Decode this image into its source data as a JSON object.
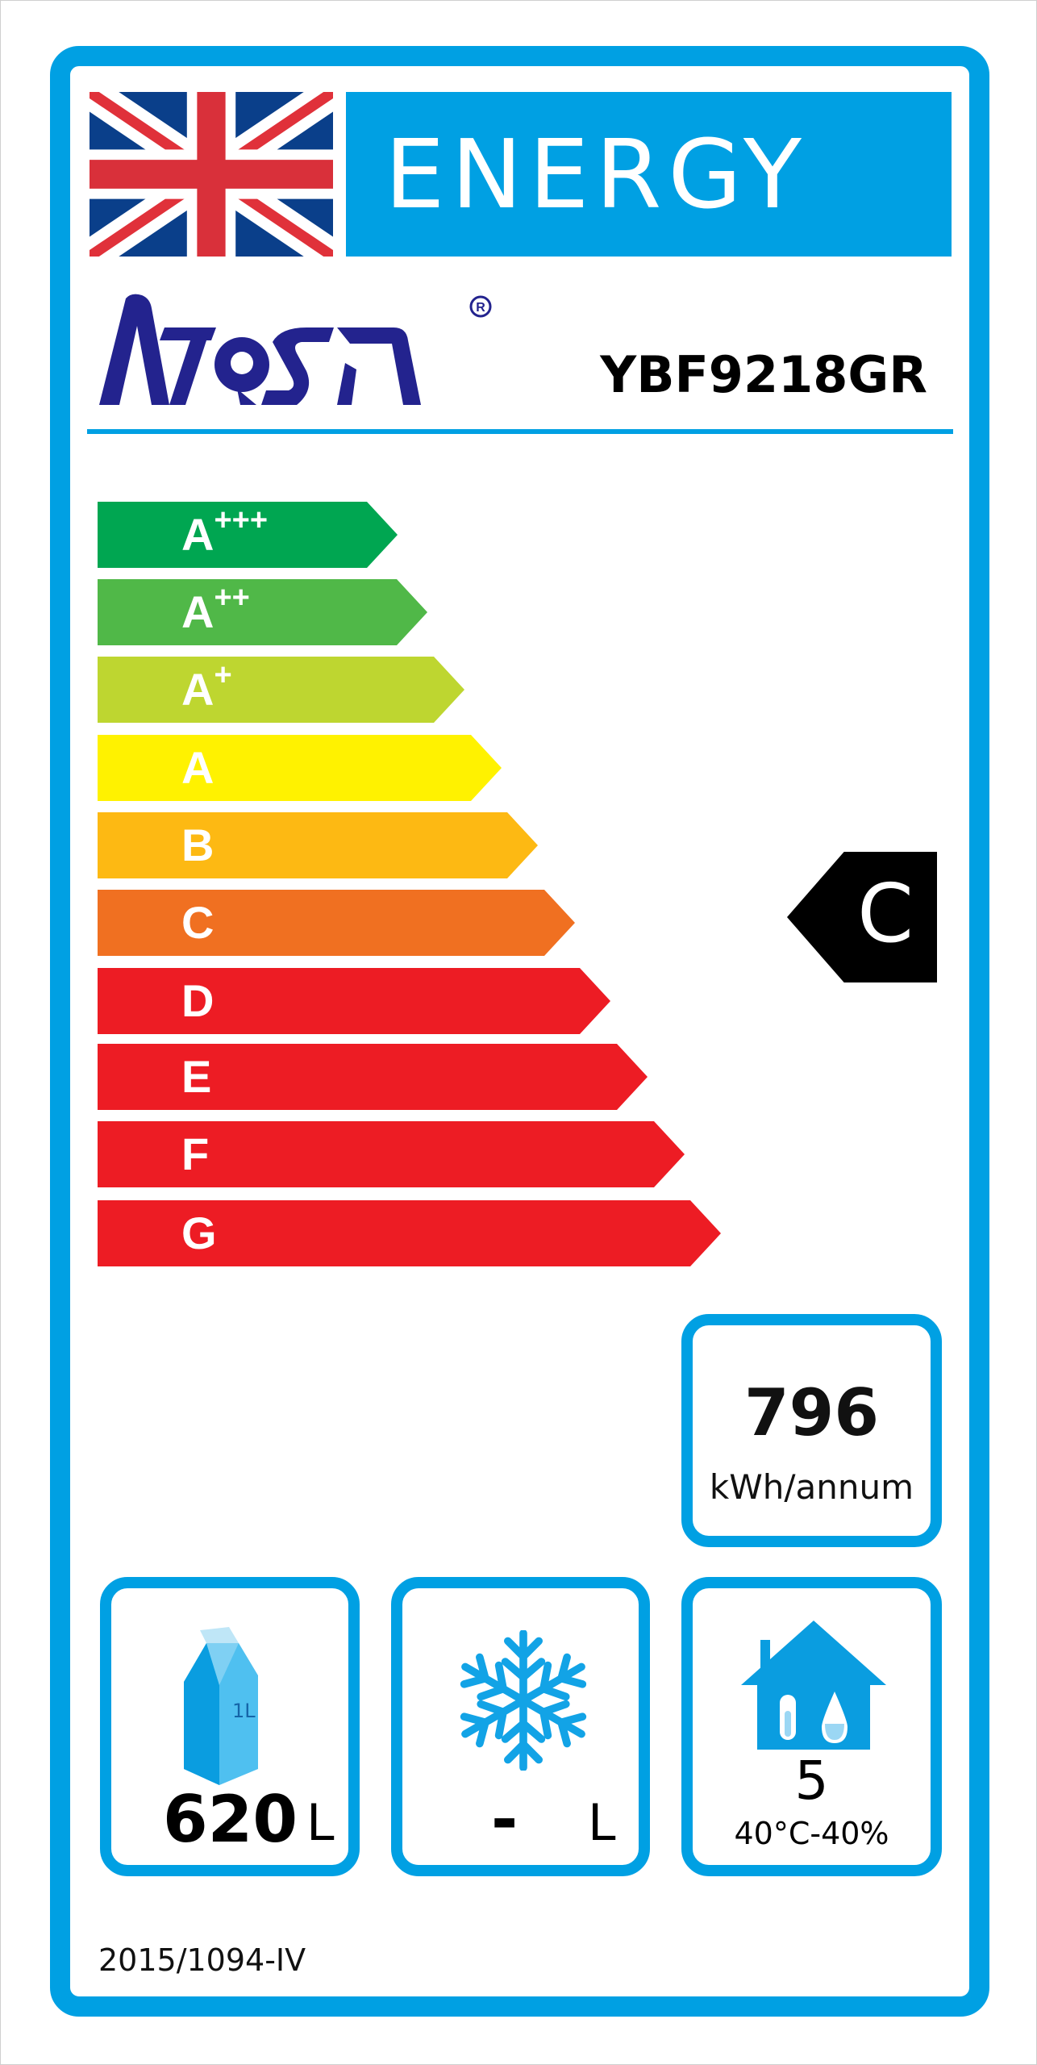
{
  "header": {
    "banner_title": "ENERGY",
    "flag_icon": "union-jack-flag-icon"
  },
  "brand": {
    "logo_text": "ATOSA",
    "registered_mark": "®",
    "model": "YBF9218GR"
  },
  "colors": {
    "frame_blue": "#00a0e3",
    "logo_blue": "#23238e"
  },
  "scale": {
    "classes": [
      {
        "base": "A",
        "sup": "+++",
        "color": "#00a651"
      },
      {
        "base": "A",
        "sup": "++",
        "color": "#50b848"
      },
      {
        "base": "A",
        "sup": "+",
        "color": "#bed630"
      },
      {
        "base": "A",
        "sup": "",
        "color": "#fff200"
      },
      {
        "base": "B",
        "sup": "",
        "color": "#fdb913"
      },
      {
        "base": "C",
        "sup": "",
        "color": "#f07021"
      },
      {
        "base": "D",
        "sup": "",
        "color": "#ed1c24"
      },
      {
        "base": "E",
        "sup": "",
        "color": "#ed1c24"
      },
      {
        "base": "F",
        "sup": "",
        "color": "#ed1c24"
      },
      {
        "base": "G",
        "sup": "",
        "color": "#ed1c24"
      }
    ],
    "rated_class": "C",
    "rated_index": 5
  },
  "consumption": {
    "value": "796",
    "unit": "kWh/annum"
  },
  "volume": {
    "chilled_value": "620",
    "chilled_unit": "L",
    "chilled_icon": "milk-carton-icon",
    "carton_label": "1L",
    "frozen_value": "-",
    "frozen_unit": "L",
    "frozen_icon": "snowflake-icon"
  },
  "climate": {
    "class": "5",
    "conditions": "40°C-40%",
    "icon": "house-thermometer-drop-icon"
  },
  "footer": {
    "regulation": "2015/1094-IV"
  }
}
